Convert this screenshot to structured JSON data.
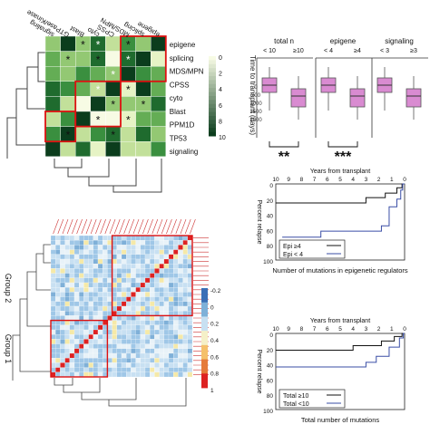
{
  "panel_a": {
    "heat_labels_top": [
      "signaling",
      "GTPase/Kinase",
      "Blast",
      "cyto",
      "CPSS",
      "MDS/MPN",
      "splicing",
      "epigene"
    ],
    "heat_labels_right": [
      "epigene",
      "splicing",
      "MDS/MPN",
      "CPSS",
      "cyto",
      "Blast",
      "PPM1D",
      "TP53",
      "signaling"
    ],
    "legend_ticks": [
      "0",
      "2",
      "4",
      "6",
      "8",
      "10"
    ]
  },
  "panel_b": {
    "ylabel": "Time to transplant (days)",
    "groups": [
      {
        "title": "total n",
        "sub": [
          "< 10",
          "≥10"
        ],
        "sig": "**"
      },
      {
        "title": "epigene",
        "sub": [
          "< 4",
          "≥4"
        ],
        "sig": "***"
      },
      {
        "title": "signaling",
        "sub": [
          "< 3",
          "≥3"
        ],
        "sig": ""
      }
    ]
  },
  "panel_c": {
    "title": "Years from transplant",
    "ylabel": "Percent relapse",
    "xticks": [
      "0",
      "1",
      "2",
      "3",
      "4",
      "5",
      "6",
      "7",
      "8",
      "9",
      "10"
    ],
    "yticks": [
      "0",
      "20",
      "40",
      "60",
      "80",
      "100"
    ],
    "legend": [
      "Epi < 4",
      "Epi ≥4"
    ],
    "footer": "Number of mutations in epigenetic regulators"
  },
  "panel_d": {
    "title": "Years from transplant",
    "ylabel": "Percent relapse",
    "xticks": [
      "0",
      "1",
      "2",
      "3",
      "4",
      "5",
      "6",
      "7",
      "8",
      "9",
      "10"
    ],
    "yticks": [
      "0",
      "20",
      "40",
      "60",
      "80",
      "100"
    ],
    "legend": [
      "Total <10",
      "Total ≥10"
    ],
    "footer": "Total number of mutations"
  },
  "panel_e": {
    "group1": "Group 1",
    "group2": "Group 2",
    "legend_ticks": [
      "-0.2",
      "0",
      "0.2",
      "0.4",
      "0.6",
      "0.8",
      "1"
    ]
  }
}
